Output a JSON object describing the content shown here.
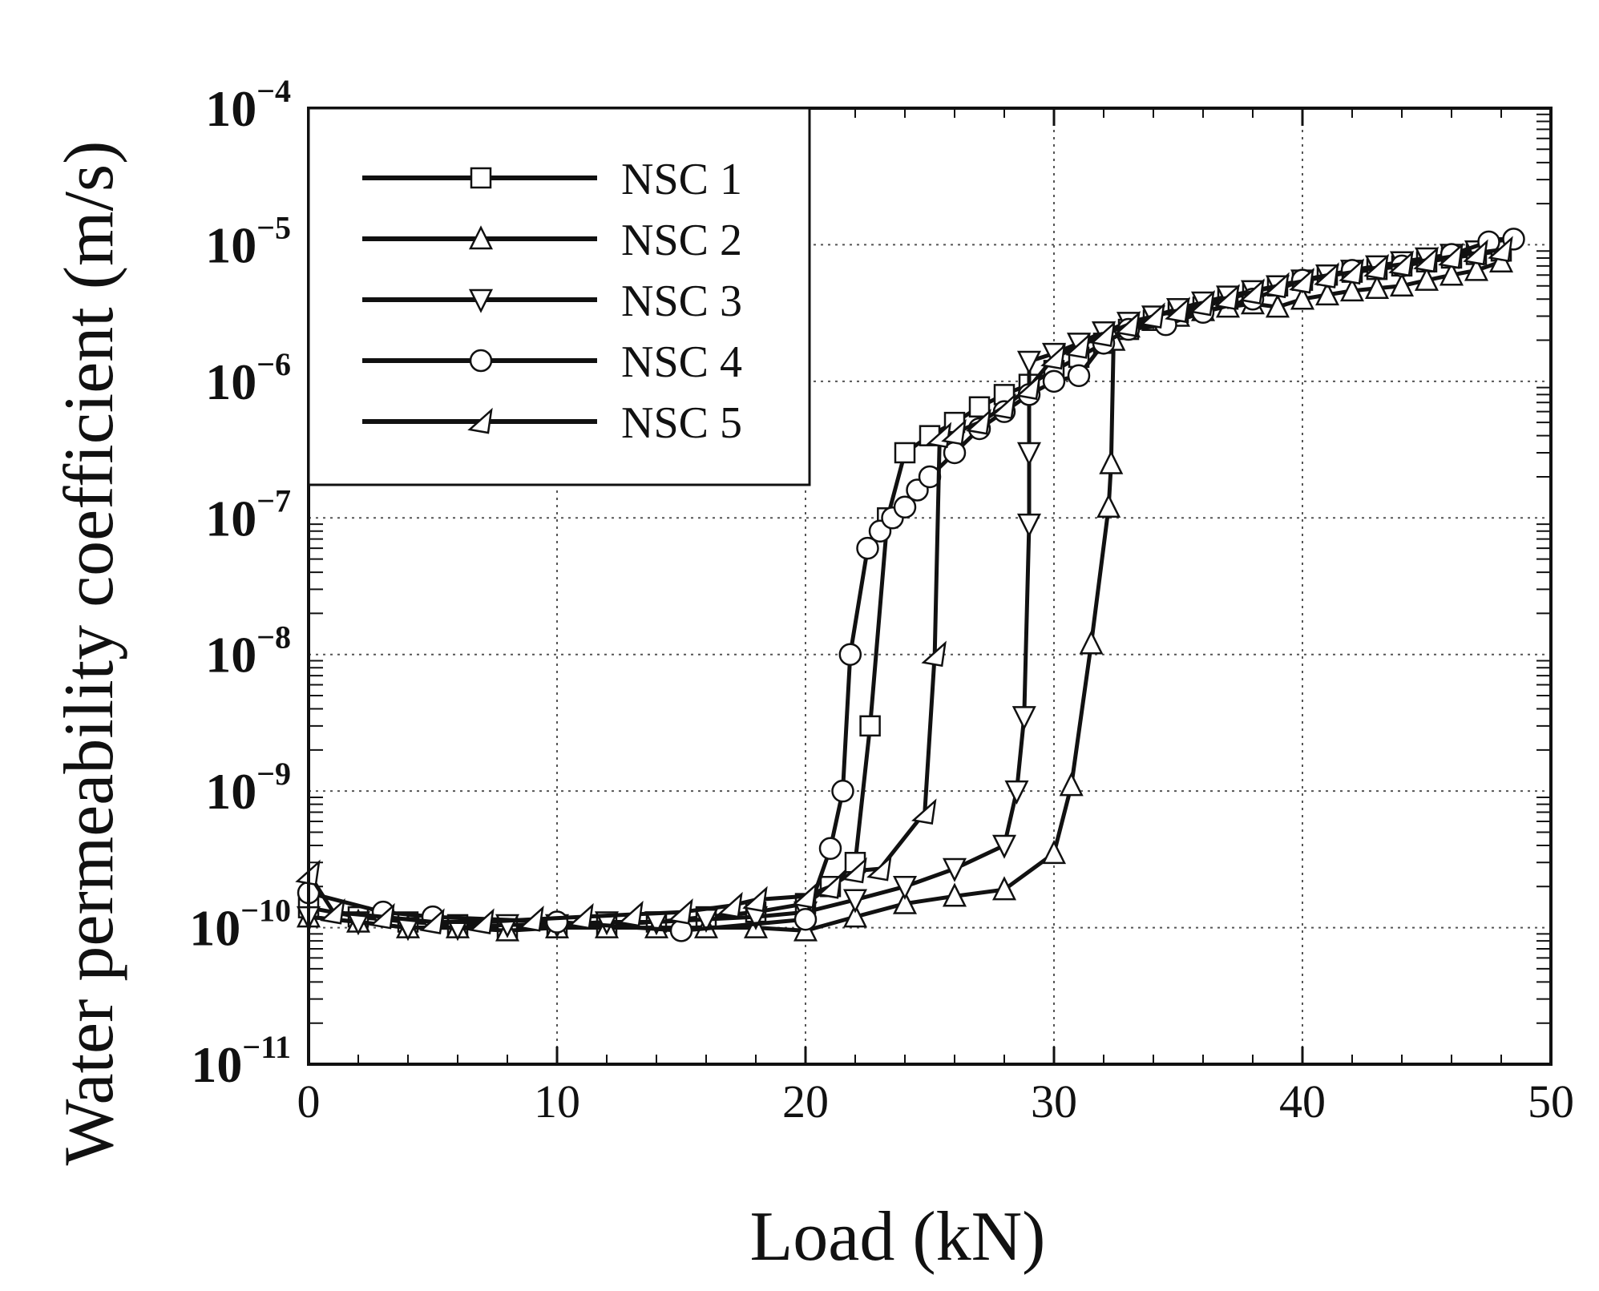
{
  "chart_data": {
    "type": "line",
    "title": "",
    "xlabel": "Load (kN)",
    "ylabel": "Water permeability coefficient (m/s)",
    "xlim": [
      0,
      50
    ],
    "ylim": [
      1e-11,
      0.0001
    ],
    "y_scale": "log",
    "grid": true,
    "legend_position": "top-left",
    "x_ticks": [
      "0",
      "10",
      "20",
      "30",
      "40",
      "50"
    ],
    "y_ticks": [
      {
        "base": "10",
        "exp": "−11"
      },
      {
        "base": "10",
        "exp": "−10"
      },
      {
        "base": "10",
        "exp": "−9"
      },
      {
        "base": "10",
        "exp": "−8"
      },
      {
        "base": "10",
        "exp": "−7"
      },
      {
        "base": "10",
        "exp": "−6"
      },
      {
        "base": "10",
        "exp": "−5"
      },
      {
        "base": "10",
        "exp": "−4"
      }
    ],
    "series": [
      {
        "name": "NSC 1",
        "marker": "square",
        "points": [
          [
            0,
            1.4e-10
          ],
          [
            2,
            1.2e-10
          ],
          [
            4,
            1.1e-10
          ],
          [
            6,
            1.05e-10
          ],
          [
            8,
            1e-10
          ],
          [
            10,
            1e-10
          ],
          [
            12,
            1.05e-10
          ],
          [
            14,
            1.1e-10
          ],
          [
            16,
            1.2e-10
          ],
          [
            18,
            1.3e-10
          ],
          [
            20,
            1.5e-10
          ],
          [
            21,
            2e-10
          ],
          [
            22,
            3e-10
          ],
          [
            22.6,
            3e-09
          ],
          [
            23.3,
            1e-07
          ],
          [
            24,
            3e-07
          ],
          [
            25,
            4e-07
          ],
          [
            26,
            5e-07
          ],
          [
            27,
            6.5e-07
          ],
          [
            28,
            8e-07
          ],
          [
            29,
            9.5e-07
          ],
          [
            30,
            1.2e-06
          ],
          [
            31,
            1.5e-06
          ],
          [
            32,
            1.9e-06
          ],
          [
            33,
            2.4e-06
          ],
          [
            34,
            2.8e-06
          ],
          [
            35,
            3.2e-06
          ],
          [
            36,
            3.5e-06
          ],
          [
            37,
            4e-06
          ],
          [
            38,
            4.5e-06
          ],
          [
            39,
            5e-06
          ],
          [
            40,
            5.5e-06
          ],
          [
            41,
            6e-06
          ],
          [
            42,
            6.3e-06
          ],
          [
            43,
            6.6e-06
          ],
          [
            44,
            7e-06
          ],
          [
            45,
            7.5e-06
          ],
          [
            46,
            8e-06
          ],
          [
            47,
            8.5e-06
          ],
          [
            48,
            9e-06
          ]
        ]
      },
      {
        "name": "NSC 2",
        "marker": "triangle-up",
        "points": [
          [
            0,
            1.2e-10
          ],
          [
            2,
            1.1e-10
          ],
          [
            4,
            1e-10
          ],
          [
            6,
            1e-10
          ],
          [
            8,
            9.5e-11
          ],
          [
            10,
            1e-10
          ],
          [
            12,
            1e-10
          ],
          [
            14,
            1e-10
          ],
          [
            16,
            1e-10
          ],
          [
            18,
            1e-10
          ],
          [
            20,
            9.5e-11
          ],
          [
            22,
            1.2e-10
          ],
          [
            24,
            1.5e-10
          ],
          [
            26,
            1.7e-10
          ],
          [
            28,
            1.9e-10
          ],
          [
            30,
            3.5e-10
          ],
          [
            30.7,
            1.1e-09
          ],
          [
            31.5,
            1.2e-08
          ],
          [
            32.2,
            1.2e-07
          ],
          [
            32.3,
            2.5e-07
          ],
          [
            32.4,
            2e-06
          ],
          [
            33,
            2.5e-06
          ],
          [
            34,
            2.8e-06
          ],
          [
            35,
            3e-06
          ],
          [
            36,
            3.3e-06
          ],
          [
            37,
            3.5e-06
          ],
          [
            38,
            3.7e-06
          ],
          [
            39,
            3.5e-06
          ],
          [
            40,
            4e-06
          ],
          [
            41,
            4.3e-06
          ],
          [
            42,
            4.6e-06
          ],
          [
            43,
            4.8e-06
          ],
          [
            44,
            5e-06
          ],
          [
            45,
            5.5e-06
          ],
          [
            46,
            6e-06
          ],
          [
            47,
            6.5e-06
          ],
          [
            48,
            7.5e-06
          ]
        ]
      },
      {
        "name": "NSC 3",
        "marker": "triangle-down",
        "points": [
          [
            0,
            1.2e-10
          ],
          [
            2,
            1.1e-10
          ],
          [
            4,
            1e-10
          ],
          [
            6,
            1e-10
          ],
          [
            8,
            1.05e-10
          ],
          [
            10,
            1.05e-10
          ],
          [
            12,
            1.1e-10
          ],
          [
            14,
            1.1e-10
          ],
          [
            16,
            1.15e-10
          ],
          [
            18,
            1.2e-10
          ],
          [
            20,
            1.3e-10
          ],
          [
            22,
            1.6e-10
          ],
          [
            24,
            2e-10
          ],
          [
            26,
            2.7e-10
          ],
          [
            28,
            4e-10
          ],
          [
            28.5,
            1e-09
          ],
          [
            28.8,
            3.5e-09
          ],
          [
            29,
            9e-08
          ],
          [
            29,
            3e-07
          ],
          [
            29,
            1.4e-06
          ],
          [
            30,
            1.6e-06
          ],
          [
            31,
            1.9e-06
          ],
          [
            32,
            2.3e-06
          ],
          [
            33,
            2.7e-06
          ],
          [
            34,
            3e-06
          ],
          [
            35,
            3.4e-06
          ],
          [
            36,
            3.8e-06
          ],
          [
            37,
            4.2e-06
          ],
          [
            38,
            4.6e-06
          ],
          [
            39,
            5e-06
          ],
          [
            40,
            5.5e-06
          ],
          [
            41,
            6e-06
          ],
          [
            42,
            6.5e-06
          ],
          [
            43,
            7e-06
          ],
          [
            44,
            7.5e-06
          ],
          [
            45,
            8e-06
          ],
          [
            46,
            8.5e-06
          ],
          [
            47,
            9e-06
          ],
          [
            48,
            9.5e-06
          ]
        ]
      },
      {
        "name": "NSC 4",
        "marker": "circle",
        "points": [
          [
            0,
            1.8e-10
          ],
          [
            3,
            1.3e-10
          ],
          [
            5,
            1.2e-10
          ],
          [
            10,
            1.1e-10
          ],
          [
            15,
            9.5e-11
          ],
          [
            20,
            1.15e-10
          ],
          [
            21,
            3.8e-10
          ],
          [
            21.5,
            1e-09
          ],
          [
            21.8,
            1e-08
          ],
          [
            22.5,
            6e-08
          ],
          [
            23,
            8e-08
          ],
          [
            23.5,
            1e-07
          ],
          [
            24,
            1.2e-07
          ],
          [
            24.5,
            1.6e-07
          ],
          [
            25,
            2e-07
          ],
          [
            26,
            3e-07
          ],
          [
            27,
            4.5e-07
          ],
          [
            28,
            6e-07
          ],
          [
            29,
            8e-07
          ],
          [
            30,
            1e-06
          ],
          [
            31,
            1.1e-06
          ],
          [
            32,
            1.9e-06
          ],
          [
            33,
            2.4e-06
          ],
          [
            34.5,
            2.6e-06
          ],
          [
            36,
            3.2e-06
          ],
          [
            38,
            4e-06
          ],
          [
            40,
            5.5e-06
          ],
          [
            42,
            6.5e-06
          ],
          [
            44,
            7e-06
          ],
          [
            46,
            8.5e-06
          ],
          [
            47.5,
            1.05e-05
          ],
          [
            48.5,
            1.1e-05
          ]
        ]
      },
      {
        "name": "NSC 5",
        "marker": "triangle-left",
        "points": [
          [
            0,
            2.5e-10
          ],
          [
            1,
            1.3e-10
          ],
          [
            3,
            1.2e-10
          ],
          [
            5,
            1.1e-10
          ],
          [
            7,
            1.1e-10
          ],
          [
            9,
            1.15e-10
          ],
          [
            11,
            1.2e-10
          ],
          [
            13,
            1.25e-10
          ],
          [
            15,
            1.3e-10
          ],
          [
            17,
            1.45e-10
          ],
          [
            18,
            1.6e-10
          ],
          [
            20,
            1.7e-10
          ],
          [
            21,
            2e-10
          ],
          [
            22,
            2.6e-10
          ],
          [
            23,
            2.7e-10
          ],
          [
            24.8,
            7e-10
          ],
          [
            25.2,
            1e-08
          ],
          [
            25.4,
            4e-07
          ],
          [
            26,
            4.2e-07
          ],
          [
            27,
            5e-07
          ],
          [
            28,
            6.5e-07
          ],
          [
            29,
            9e-07
          ],
          [
            30,
            1.5e-06
          ],
          [
            31,
            1.8e-06
          ],
          [
            32,
            2.2e-06
          ],
          [
            33,
            2.6e-06
          ],
          [
            34,
            3e-06
          ],
          [
            35,
            3.3e-06
          ],
          [
            36,
            3.7e-06
          ],
          [
            37,
            4.1e-06
          ],
          [
            38,
            4.5e-06
          ],
          [
            39,
            5e-06
          ],
          [
            40,
            5.4e-06
          ],
          [
            41,
            5.9e-06
          ],
          [
            42,
            6.3e-06
          ],
          [
            43,
            6.8e-06
          ],
          [
            44,
            7.2e-06
          ],
          [
            45,
            7.7e-06
          ],
          [
            46,
            8.2e-06
          ],
          [
            47,
            8.7e-06
          ],
          [
            48,
            9.2e-06
          ]
        ]
      }
    ]
  }
}
